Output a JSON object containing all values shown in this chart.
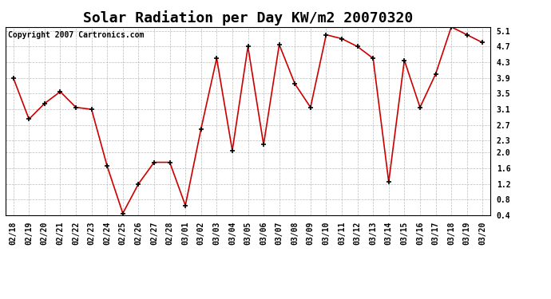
{
  "title": "Solar Radiation per Day KW/m2 20070320",
  "copyright": "Copyright 2007 Cartronics.com",
  "labels": [
    "02/18",
    "02/19",
    "02/20",
    "02/21",
    "02/22",
    "02/23",
    "02/24",
    "02/25",
    "02/26",
    "02/27",
    "02/28",
    "03/01",
    "03/02",
    "03/03",
    "03/04",
    "03/05",
    "03/06",
    "03/07",
    "03/08",
    "03/09",
    "03/10",
    "03/11",
    "03/12",
    "03/13",
    "03/14",
    "03/15",
    "03/16",
    "03/17",
    "03/18",
    "03/19",
    "03/20"
  ],
  "values": [
    3.9,
    2.85,
    3.25,
    3.55,
    3.15,
    3.1,
    1.65,
    0.45,
    1.2,
    1.75,
    1.75,
    0.65,
    2.6,
    4.4,
    2.05,
    4.7,
    2.2,
    4.75,
    3.75,
    3.15,
    5.0,
    4.9,
    4.7,
    4.4,
    1.25,
    4.35,
    3.15,
    4.0,
    5.2,
    5.0,
    4.8
  ],
  "line_color": "#cc0000",
  "marker": "+",
  "marker_color": "#000000",
  "ylim": [
    0.4,
    5.2
  ],
  "yticks": [
    0.4,
    0.8,
    1.2,
    1.6,
    2.0,
    2.3,
    2.7,
    3.1,
    3.5,
    3.9,
    4.3,
    4.7,
    5.1
  ],
  "ytick_labels": [
    "0.4",
    "0.8",
    "1.2",
    "1.6",
    "2.0",
    "2.3",
    "2.7",
    "3.1",
    "3.5",
    "3.9",
    "4.3",
    "4.7",
    "5.1"
  ],
  "background_color": "#ffffff",
  "grid_color": "#aaaaaa",
  "title_fontsize": 13,
  "copyright_fontsize": 7,
  "tick_fontsize": 7
}
